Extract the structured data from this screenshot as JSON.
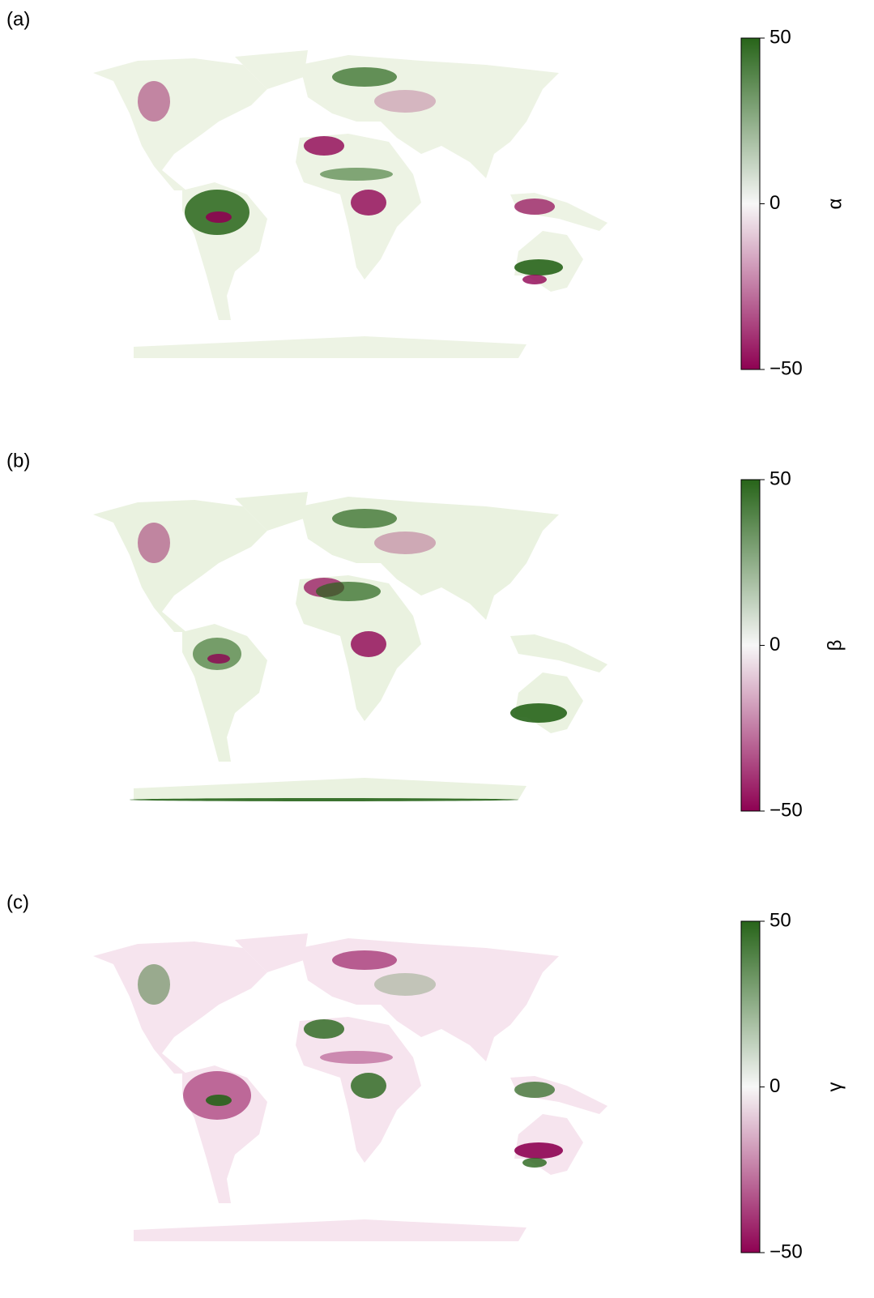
{
  "chart_data": [
    {
      "type": "map",
      "panel_label": "(a)",
      "colorbar_label": "α",
      "clim": [
        -50,
        50
      ],
      "cticks": [
        {
          "value": -50,
          "label": "−50"
        },
        0,
        50
      ],
      "colors": [
        "#8e0152",
        "#f7f7f7",
        "#276419"
      ]
    },
    {
      "type": "map",
      "panel_label": "(b)",
      "colorbar_label": "β",
      "clim": [
        -50,
        50
      ],
      "cticks": [
        {
          "value": -50,
          "label": "−50"
        },
        0,
        50
      ],
      "colors": [
        "#8e0152",
        "#f7f7f7",
        "#276419"
      ]
    },
    {
      "type": "map",
      "panel_label": "(c)",
      "colorbar_label": "γ",
      "clim": [
        -50,
        50
      ],
      "cticks": [
        {
          "value": -50,
          "label": "−50"
        },
        0,
        50
      ],
      "colors": [
        "#8e0152",
        "#f7f7f7",
        "#276419"
      ]
    }
  ]
}
